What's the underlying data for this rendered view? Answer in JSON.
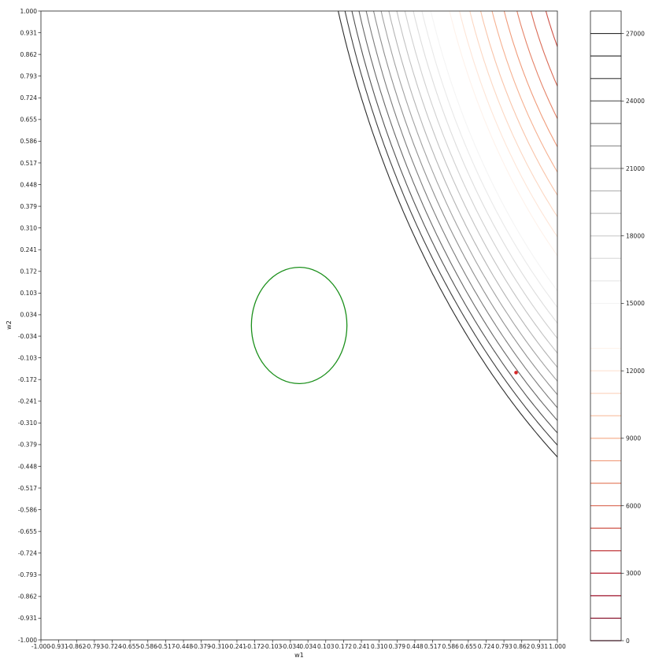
{
  "chart_data": {
    "type": "contour",
    "xlabel": "w1",
    "ylabel": "w2",
    "xlim": [
      -1.0,
      1.0
    ],
    "ylim": [
      -1.0,
      1.0
    ],
    "x_ticks": [
      "-1.000",
      "-0.931",
      "-0.862",
      "-0.793",
      "-0.724",
      "-0.655",
      "-0.586",
      "-0.517",
      "-0.448",
      "-0.379",
      "-0.310",
      "-0.241",
      "-0.172",
      "-0.103",
      "-0.034",
      "0.034",
      "0.103",
      "0.172",
      "0.241",
      "0.310",
      "0.379",
      "0.448",
      "0.517",
      "0.586",
      "0.655",
      "0.724",
      "0.793",
      "0.862",
      "0.931",
      "1.000"
    ],
    "y_ticks": [
      "-1.000",
      "-0.931",
      "-0.862",
      "-0.793",
      "-0.724",
      "-0.655",
      "-0.586",
      "-0.517",
      "-0.448",
      "-0.379",
      "-0.310",
      "-0.241",
      "-0.172",
      "-0.103",
      "-0.034",
      "0.034",
      "0.103",
      "0.172",
      "0.241",
      "0.310",
      "0.379",
      "0.448",
      "0.517",
      "0.586",
      "0.655",
      "0.724",
      "0.793",
      "0.862",
      "0.931",
      "1.000"
    ],
    "colorbar": {
      "range": [
        0,
        28000
      ],
      "tick_values": [
        0,
        3000,
        6000,
        9000,
        12000,
        15000,
        18000,
        21000,
        24000,
        27000
      ],
      "tick_labels": [
        "0",
        "3000",
        "6000",
        "9000",
        "12000",
        "15000",
        "18000",
        "21000",
        "24000",
        "27000"
      ],
      "level_step": 1000
    },
    "circle": {
      "center": [
        0.0,
        0.0
      ],
      "radius": 0.185,
      "color": "#1a8f1a"
    },
    "point": {
      "w1": 0.84,
      "w2": -0.15,
      "color": "#d62728"
    },
    "grid": false
  }
}
